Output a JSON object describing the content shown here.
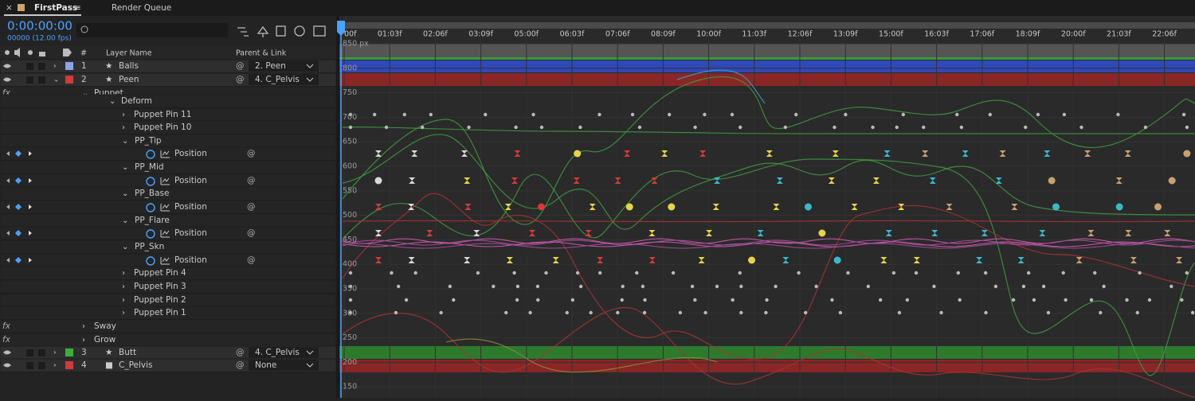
{
  "tabs": [
    {
      "label": "FirstPass"
    },
    {
      "label": "Render Queue"
    }
  ],
  "timecode": "0:00:00:00",
  "frame_info": "00000 (12.00 fps)",
  "columns": {
    "number": "#",
    "layer_name": "Layer Name",
    "parent": "Parent & Link"
  },
  "rows": [
    {
      "number": "1",
      "name": "Balls",
      "parent": "2. Peen"
    },
    {
      "number": "2",
      "name": "Peen",
      "parent": "4. C_Pelvis"
    },
    {
      "label": "Puppet"
    },
    {
      "label": "Deform"
    },
    {
      "label": "Puppet Pin 11"
    },
    {
      "label": "Puppet Pin 10"
    },
    {
      "label": "PP_Tip"
    },
    {
      "label": "Position"
    },
    {
      "label": "PP_Mid"
    },
    {
      "label": "Position"
    },
    {
      "label": "PP_Base"
    },
    {
      "label": "Position"
    },
    {
      "label": "PP_Flare"
    },
    {
      "label": "Position"
    },
    {
      "label": "PP_Skn"
    },
    {
      "label": "Position"
    },
    {
      "label": "Puppet Pin 4"
    },
    {
      "label": "Puppet Pin 3"
    },
    {
      "label": "Puppet Pin 2"
    },
    {
      "label": "Puppet Pin 1"
    },
    {
      "label": "Sway"
    },
    {
      "label": "Grow"
    },
    {
      "number": "3",
      "name": "Butt",
      "parent": "4. C_Pelvis"
    },
    {
      "number": "4",
      "name": "C_Pelvis",
      "parent": "None"
    }
  ],
  "ruler": [
    "00f",
    "01:03f",
    "02:06f",
    "03:09f",
    "05:00f",
    "06:03f",
    "07:06f",
    "08:09f",
    "10:00f",
    "11:03f",
    "12:06f",
    "13:09f",
    "15:00f",
    "16:03f",
    "17:06f",
    "18:09f",
    "20:00f",
    "21:03f",
    "22:06f"
  ],
  "graph_labels": [
    "850 px",
    800,
    750,
    700,
    650,
    600,
    550,
    500,
    450,
    400,
    350,
    300,
    250,
    200,
    150
  ]
}
